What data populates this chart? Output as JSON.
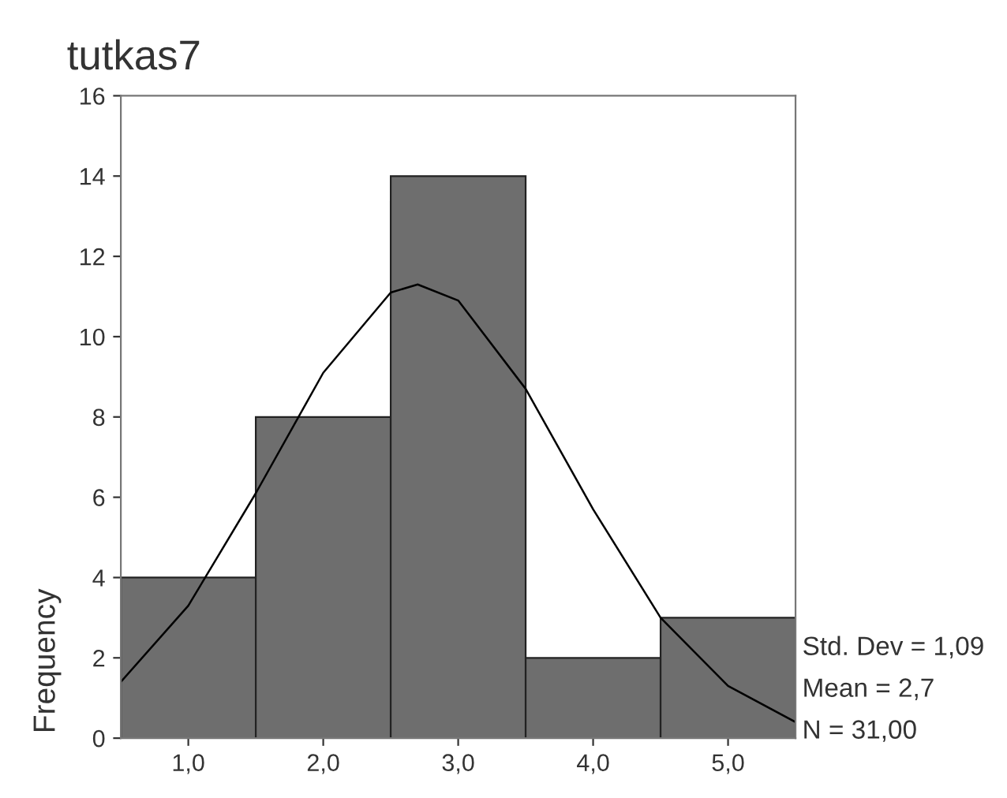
{
  "chart_data": {
    "type": "histogram",
    "title": "tutkas7",
    "ylabel": "Frequency",
    "bins": [
      0.5,
      1.5,
      2.5,
      3.5,
      4.5,
      5.5
    ],
    "values": [
      4,
      8,
      14,
      2,
      3
    ],
    "color": "#6e6e6e",
    "series": [
      {
        "type": "line",
        "color": "#000000",
        "x": [
          0.5,
          1.0,
          1.5,
          2.0,
          2.5,
          2.7,
          3.0,
          3.5,
          4.0,
          4.5,
          5.0,
          5.5
        ],
        "values": [
          1.4,
          3.3,
          6.1,
          9.1,
          11.1,
          11.3,
          10.9,
          8.7,
          5.7,
          3.0,
          1.3,
          0.4
        ]
      }
    ],
    "xlim": [
      0.5,
      5.5
    ],
    "ylim": [
      0,
      16
    ],
    "xticks": [
      {
        "value": 1,
        "label": "1,0"
      },
      {
        "value": 2,
        "label": "2,0"
      },
      {
        "value": 3,
        "label": "3,0"
      },
      {
        "value": 4,
        "label": "4,0"
      },
      {
        "value": 5,
        "label": "5,0"
      }
    ],
    "yticks": [
      0,
      2,
      4,
      6,
      8,
      10,
      12,
      14,
      16
    ],
    "annotations": [
      "Std. Dev = 1,09",
      "Mean = 2,7",
      "N = 31,00"
    ]
  }
}
